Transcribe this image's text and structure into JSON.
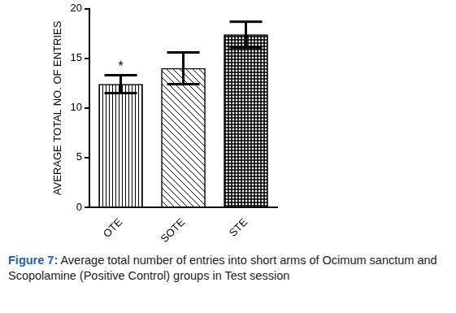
{
  "chart_data": {
    "type": "bar",
    "y_label": "AVERAGE TOTAL NO. OF ENTRIES",
    "categories": [
      "OTE",
      "SOTE",
      "STE"
    ],
    "values": [
      12.4,
      14.0,
      17.4
    ],
    "errors": [
      0.9,
      1.6,
      1.3
    ],
    "color": "#000000",
    "ylim": [
      0,
      20
    ],
    "yticks": [
      0,
      5,
      10,
      15,
      20
    ],
    "grid": false,
    "legend": false,
    "annotations": [
      {
        "category": "OTE",
        "text": "*"
      }
    ],
    "caption": "Figure 7: Average total number of entries into short arms of Ocimum sanctum and Scopolamine (Positive Control) groups in Test session"
  }
}
